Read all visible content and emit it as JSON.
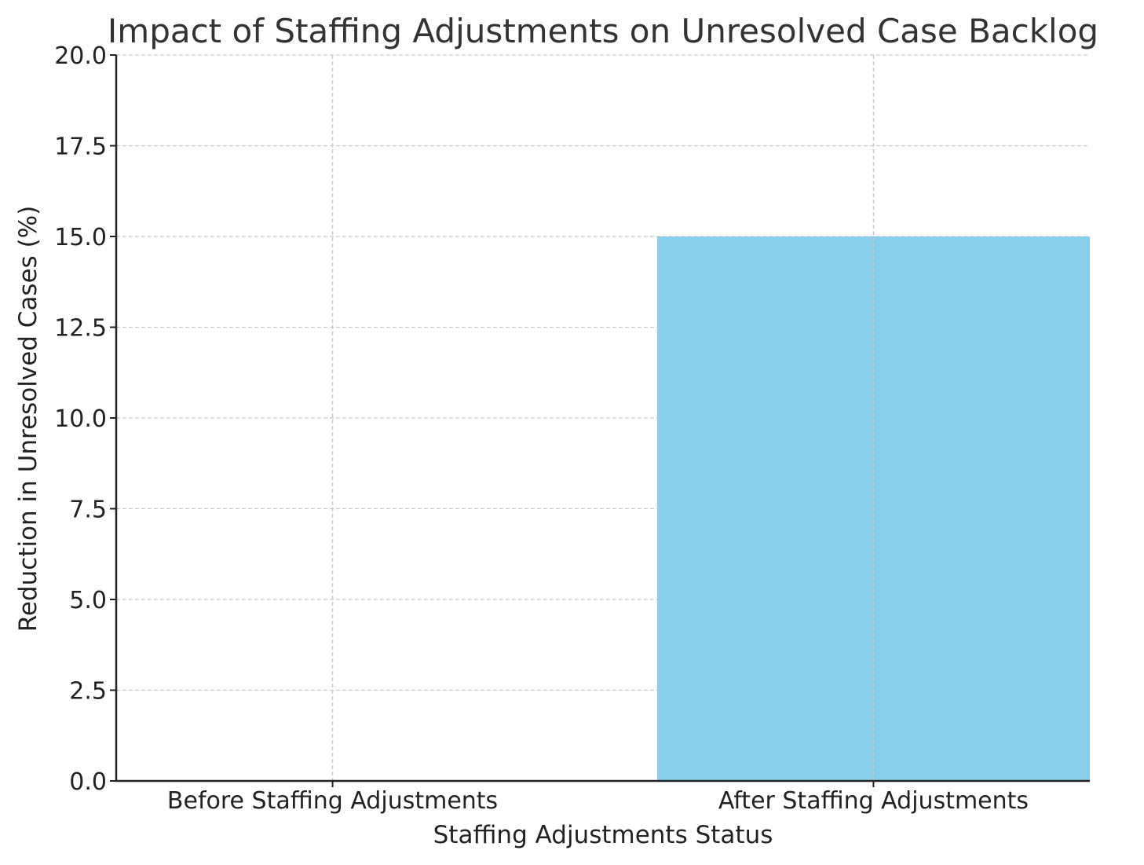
{
  "chart_data": {
    "type": "bar",
    "title": "Impact of Staffing Adjustments on Unresolved Case Backlog",
    "xlabel": "Staffing Adjustments Status",
    "ylabel": "Reduction in Unresolved Cases (%)",
    "categories": [
      "Before Staffing Adjustments",
      "After Staffing Adjustments"
    ],
    "values": [
      0,
      15
    ],
    "ylim": [
      0,
      20
    ],
    "yticks": [
      "0.0",
      "2.5",
      "5.0",
      "7.5",
      "10.0",
      "12.5",
      "15.0",
      "17.5",
      "20.0"
    ],
    "bar_color": "#87ceeb",
    "grid": true,
    "legend": false
  }
}
